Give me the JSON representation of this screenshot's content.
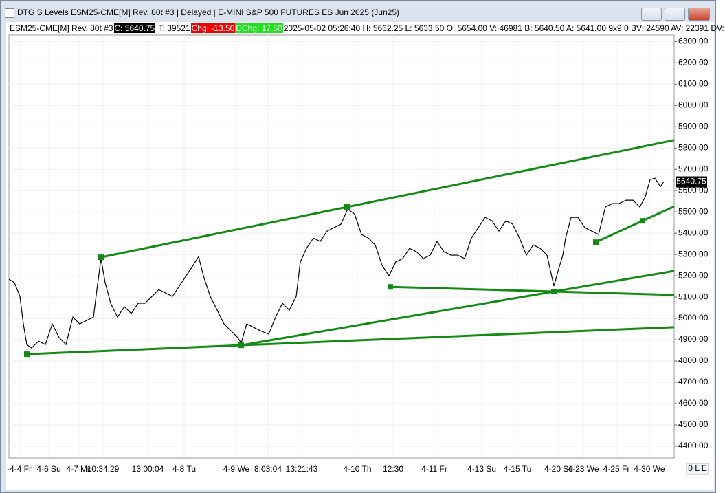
{
  "window_title": "DTG S Levels ESM25-CME[M]  Rev. 80t #3 | Delayed | E-MINI S&P 500 FUTURES ES Jun 2025 (Jun25)",
  "info_bar": {
    "symbol": "ESM25-CME[M]  Rev. 80t #3",
    "close": "C: 5640.75",
    "ticks": "T: 39521",
    "change": "Chg: -13.50",
    "daily_change": "DChg: 17.50",
    "details": "2025-05-02 05:26:40 H: 5662.25 L: 5633.50 O: 5654.00 V: 46981 B: 5640.50 A: 5641.00 9x9 0 BV: 24590 AV: 22391 DV:"
  },
  "corner_label": "0 L E",
  "chart_data": {
    "type": "line",
    "x": [
      0,
      8,
      16,
      21,
      26,
      33,
      43,
      53,
      63,
      73,
      83,
      93,
      103,
      113,
      123,
      128,
      134,
      140,
      148,
      158,
      168,
      178,
      188,
      198,
      208,
      218,
      228,
      238,
      248,
      258,
      268,
      276,
      283,
      293,
      303,
      313,
      323,
      333,
      338,
      346,
      356,
      366,
      378,
      388,
      398,
      408,
      418,
      424,
      433,
      443,
      453,
      463,
      473,
      483,
      493,
      503,
      513,
      523,
      533,
      543,
      553,
      563,
      573,
      583,
      593,
      603,
      613,
      623,
      633,
      643,
      653,
      663,
      673,
      683,
      693,
      703,
      713,
      723,
      733,
      743,
      753,
      763,
      773,
      783,
      793,
      800,
      806,
      810,
      818,
      828,
      838,
      848,
      858,
      868,
      878,
      888,
      898,
      908,
      918,
      926,
      933,
      940,
      948,
      953
    ],
    "series": [
      {
        "name": "ESM25-CME[M]",
        "color": "#000000",
        "values": [
          5184,
          5168,
          5103,
          4974,
          4877,
          4861,
          4893,
          4877,
          4974,
          4910,
          4877,
          5006,
          4974,
          4990,
          5006,
          5135,
          5281,
          5168,
          5071,
          5006,
          5055,
          5023,
          5071,
          5071,
          5103,
          5135,
          5119,
          5103,
          5152,
          5200,
          5249,
          5290,
          5200,
          5103,
          5039,
          4974,
          4942,
          4910,
          4884,
          4974,
          4958,
          4942,
          4926,
          5006,
          5071,
          5039,
          5103,
          5265,
          5329,
          5377,
          5361,
          5410,
          5426,
          5442,
          5513,
          5490,
          5394,
          5377,
          5345,
          5249,
          5200,
          5265,
          5281,
          5329,
          5313,
          5281,
          5297,
          5361,
          5313,
          5297,
          5297,
          5281,
          5377,
          5426,
          5474,
          5458,
          5410,
          5458,
          5442,
          5377,
          5297,
          5345,
          5329,
          5297,
          5152,
          5232,
          5297,
          5377,
          5474,
          5474,
          5426,
          5410,
          5394,
          5523,
          5539,
          5539,
          5555,
          5555,
          5523,
          5571,
          5652,
          5658,
          5619,
          5642
        ]
      }
    ],
    "trendlines": [
      {
        "color": "#138a13",
        "x": [
          134,
          492
        ],
        "values": [
          5287,
          5523
        ]
      },
      {
        "color": "#138a13",
        "x": [
          26,
          338
        ],
        "values": [
          4832,
          4874
        ]
      },
      {
        "color": "#138a13",
        "x": [
          338,
          793
        ],
        "values": [
          4874,
          5126
        ]
      },
      {
        "color": "#138a13",
        "x": [
          555,
          793
        ],
        "values": [
          5148,
          5126
        ]
      },
      {
        "color": "#138a13",
        "x": [
          854,
          922
        ],
        "values": [
          5358,
          5458
        ]
      }
    ],
    "last_price": 5640.75,
    "xlim": [
      0,
      968
    ],
    "ylim": [
      4345,
      6330
    ],
    "xticks": [
      {
        "value": 15,
        "label": "-4-4 Fr"
      },
      {
        "value": 58,
        "label": "4-6 Su"
      },
      {
        "value": 102,
        "label": "4-7 Mo"
      },
      {
        "value": 137,
        "label": "10:34:29"
      },
      {
        "value": 202,
        "label": "13:00:04"
      },
      {
        "value": 255,
        "label": "4-8 Tu"
      },
      {
        "value": 331,
        "label": "4-9 We"
      },
      {
        "value": 377,
        "label": "8:03:04"
      },
      {
        "value": 426,
        "label": "13:21:43"
      },
      {
        "value": 507,
        "label": "4-10 Th"
      },
      {
        "value": 559,
        "label": "12:30"
      },
      {
        "value": 619,
        "label": "4-11 Fr"
      },
      {
        "value": 688,
        "label": "4-13 Su"
      },
      {
        "value": 740,
        "label": "4-15 Tu"
      },
      {
        "value": 800,
        "label": "4-20 Su"
      },
      {
        "value": 836,
        "label": "4-23 We"
      },
      {
        "value": 884,
        "label": "4-25 Fr"
      },
      {
        "value": 932,
        "label": "4-30 We"
      }
    ],
    "yticks": [
      {
        "value": 4400,
        "label": "4400.00"
      },
      {
        "value": 4500,
        "label": "4500.00"
      },
      {
        "value": 4600,
        "label": "4600.00"
      },
      {
        "value": 4700,
        "label": "4700.00"
      },
      {
        "value": 4800,
        "label": "4800.00"
      },
      {
        "value": 4900,
        "label": "4900.00"
      },
      {
        "value": 5000,
        "label": "5000.00"
      },
      {
        "value": 5100,
        "label": "5100.00"
      },
      {
        "value": 5200,
        "label": "5200.00"
      },
      {
        "value": 5300,
        "label": "5300.00"
      },
      {
        "value": 5400,
        "label": "5400.00"
      },
      {
        "value": 5500,
        "label": "5500.00"
      },
      {
        "value": 5600,
        "label": "5600.00"
      },
      {
        "value": 5700,
        "label": "5700.00"
      },
      {
        "value": 5800,
        "label": "5800.00"
      },
      {
        "value": 5900,
        "label": "5900.00"
      },
      {
        "value": 6000,
        "label": "6000.00"
      },
      {
        "value": 6100,
        "label": "6100.00"
      },
      {
        "value": 6200,
        "label": "6200.00"
      },
      {
        "value": 6300,
        "label": "6300.00"
      }
    ],
    "grid": true
  }
}
